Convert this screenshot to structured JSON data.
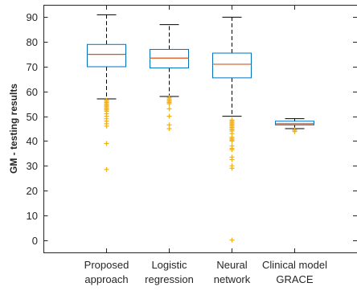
{
  "chart_data": {
    "type": "box",
    "ylabel": "GM - testing results",
    "ylim": [
      -5,
      95
    ],
    "yticks": [
      0,
      10,
      20,
      30,
      40,
      50,
      60,
      70,
      80,
      90
    ],
    "grid": false,
    "colors": {
      "box": "#0072bd",
      "median": "#d95319",
      "whisker": "#000000",
      "outlier": "#edb120",
      "axis": "#262626"
    },
    "categories": [
      [
        "Proposed",
        "approach"
      ],
      [
        "Logistic",
        "regression"
      ],
      [
        "Neural",
        "network"
      ],
      [
        "Clinical model",
        "GRACE"
      ]
    ],
    "series": [
      {
        "q1": 70,
        "median": 75,
        "q3": 79,
        "whisker_low": 57,
        "whisker_high": 91,
        "outliers": [
          56.5,
          56,
          55.5,
          55,
          54.5,
          54,
          53.5,
          53,
          52.5,
          52,
          51,
          50,
          49,
          48,
          47,
          46,
          39,
          28.5
        ]
      },
      {
        "q1": 69.5,
        "median": 73.5,
        "q3": 77,
        "whisker_low": 58,
        "whisker_high": 87,
        "outliers": [
          57.5,
          57,
          56.5,
          56,
          55.5,
          55,
          53,
          50,
          46.5,
          45
        ]
      },
      {
        "q1": 65.5,
        "median": 71,
        "q3": 75.5,
        "whisker_low": 50,
        "whisker_high": 90,
        "outliers": [
          48.5,
          48,
          47.5,
          47,
          46.5,
          46,
          45.5,
          45,
          44.5,
          44,
          43,
          41.5,
          41,
          40.5,
          40,
          38,
          37,
          36.5,
          33.5,
          32.5,
          30,
          29,
          0
        ]
      },
      {
        "q1": 46.5,
        "median": 47,
        "q3": 48,
        "whisker_low": 45,
        "whisker_high": 49,
        "outliers": [
          44.5,
          44,
          43.8
        ]
      }
    ]
  }
}
